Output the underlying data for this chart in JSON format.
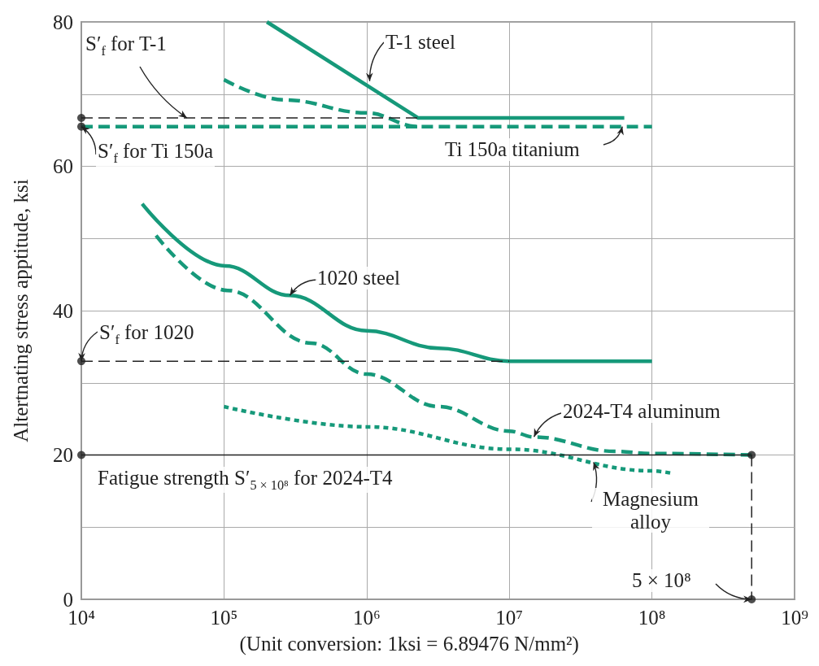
{
  "chart_data": {
    "type": "line",
    "ylabel": "Altertnating stress apptitude, ksi",
    "log": "x",
    "xlim": [
      10000,
      1000000000
    ],
    "xticks": [
      {
        "value": 10000,
        "label": "10⁴"
      },
      {
        "value": 100000,
        "label": "10⁵"
      },
      {
        "value": 1000000,
        "label": "10⁶"
      },
      {
        "value": 10000000,
        "label": "10⁷"
      },
      {
        "value": 100000000,
        "label": "10⁸"
      },
      {
        "value": 1000000000,
        "label": "10⁹"
      }
    ],
    "ylim": [
      0,
      80
    ],
    "yticks": [
      0,
      {
        "value": 10,
        "label": null
      },
      20,
      {
        "value": 30,
        "label": null
      },
      40,
      {
        "value": 50,
        "label": null
      },
      60,
      {
        "value": 70,
        "label": null
      },
      80
    ],
    "grid": true,
    "marker": "none",
    "series": [
      {
        "color": "#16997a",
        "line_style": "solid",
        "x": [
          200000,
          2300000,
          64000000
        ],
        "values": [
          80,
          66.7,
          66.7
        ]
      },
      {
        "color": "#16997a",
        "line_style": "dashed",
        "x": [
          100000,
          266000,
          1000000,
          2300000,
          100000000
        ],
        "values": [
          72,
          69.2,
          67.4,
          65.5,
          65.5
        ]
      },
      {
        "color": "#16997a",
        "line_style": "dashed",
        "x": [
          10000,
          2300000
        ],
        "values": [
          65.5,
          65.5
        ]
      },
      {
        "color": "#16997a",
        "line_style": "solid",
        "x": [
          26700,
          102000,
          290000,
          1000000,
          3200000,
          10000000,
          100000000
        ],
        "values": [
          54.8,
          46.2,
          42.1,
          37.2,
          34.8,
          33,
          33
        ]
      },
      {
        "color": "#16997a",
        "line_style": "dashed",
        "x": [
          33400,
          106000,
          410000,
          1000000,
          3200000,
          10000000,
          14900000,
          55000000,
          100000000,
          500000000
        ],
        "values": [
          50.4,
          42.8,
          35.5,
          31.2,
          26.7,
          23.3,
          22.5,
          20.5,
          20.2,
          20
        ]
      },
      {
        "color": "#16997a",
        "line_style": "dotted",
        "x": [
          100000,
          1000000,
          10000000,
          100000000,
          143000000
        ],
        "values": [
          26.7,
          23.9,
          20.8,
          17.8,
          17.4
        ]
      },
      {
        "color": "#222222",
        "line_style": "dashed",
        "x": [
          10000,
          2300000
        ],
        "values": [
          66.7,
          66.7
        ]
      },
      {
        "color": "#222222",
        "line_style": "dashed",
        "x": [
          10000,
          10000000
        ],
        "values": [
          33,
          33
        ]
      },
      {
        "color": "#222222",
        "line_style": "solid",
        "x": [
          10000,
          500000000
        ],
        "values": [
          20,
          20
        ]
      },
      {
        "color": "#222222",
        "line_style": "dashed",
        "x": [
          500000000,
          500000000
        ],
        "values": [
          20,
          0
        ]
      },
      {
        "type": "scatter",
        "marker": "circle",
        "color": "#222222",
        "x": [
          10000,
          10000,
          10000,
          10000,
          500000000,
          500000000
        ],
        "values": [
          66.7,
          65.5,
          33,
          20,
          20,
          0
        ]
      }
    ],
    "annotations": [
      {
        "text": "S′$_{f}$ for T-1",
        "x": 55000,
        "y": 66.7
      },
      {
        "text": "S′$_{f}$ for Ti 150a",
        "x": 10000,
        "y": 65.5
      },
      {
        "text": "T-1 steel",
        "x": 1050000,
        "y": 71.8
      },
      {
        "text": "Ti 150a titanium",
        "x": 62000000,
        "y": 65.5
      },
      {
        "text": "1020 steel",
        "x": 290000,
        "y": 42.1
      },
      {
        "text": "S′$_{f}$ for 1020",
        "x": 10000,
        "y": 33
      },
      {
        "text": "2024-T4 aluminum",
        "x": 14900000,
        "y": 22.5
      },
      {
        "text": "Fatigue strength S′$_{5 × 10⁸}$ for 2024-T4",
        "y": 20
      },
      {
        "text": "Magnesium alloy",
        "x": 39000000,
        "y": 19
      },
      {
        "text": "5 × 10⁸",
        "x": 500000000,
        "y": 0
      },
      "(Unit conversion: 1ksi = 6.89476 N/mm²)"
    ]
  }
}
